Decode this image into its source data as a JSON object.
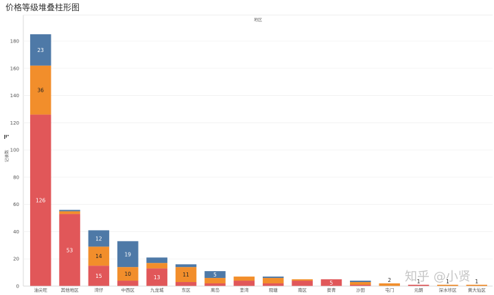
{
  "chart_data": {
    "type": "bar",
    "stacked": true,
    "title": "价格等级堆叠柱形图",
    "top_axis_label": "地区",
    "ylabel": "记录数",
    "ylim": [
      0,
      190
    ],
    "yticks": [
      0,
      20,
      40,
      60,
      80,
      100,
      120,
      140,
      160,
      180
    ],
    "grid": true,
    "categories": [
      "油尖旺",
      "其他地区",
      "湾仔",
      "中西区",
      "九龙城",
      "东区",
      "离岛",
      "荃湾",
      "观塘",
      "南区",
      "葵青",
      "沙田",
      "屯门",
      "元朗",
      "深水埗区",
      "黄大仙区"
    ],
    "series": [
      {
        "color": "#e15759",
        "values": [
          126,
          53,
          15,
          4,
          13,
          3,
          2,
          4,
          2,
          4,
          5,
          1,
          0,
          1,
          0,
          0
        ]
      },
      {
        "color": "#f28e2b",
        "values": [
          36,
          2,
          14,
          10,
          4,
          11,
          4,
          3,
          4,
          1,
          0,
          2,
          2,
          0,
          1,
          1
        ]
      },
      {
        "color": "#4e79a7",
        "values": [
          23,
          1,
          12,
          19,
          4,
          2,
          5,
          0,
          1,
          0,
          0,
          1,
          0,
          0,
          0,
          0
        ]
      }
    ],
    "value_labels": [
      [
        126,
        36,
        23
      ],
      [
        53,
        null,
        null
      ],
      [
        15,
        14,
        12
      ],
      [
        null,
        10,
        19
      ],
      [
        13,
        null,
        null
      ],
      [
        null,
        11,
        null
      ],
      [
        null,
        null,
        5
      ],
      [
        null,
        null,
        null
      ],
      [
        null,
        null,
        null
      ],
      [
        null,
        null,
        null
      ],
      [
        5,
        null,
        null
      ],
      [
        null,
        null,
        null
      ],
      [
        null,
        2,
        null
      ],
      [
        1,
        null,
        null
      ],
      [
        null,
        1,
        null
      ],
      [
        null,
        1,
        null
      ]
    ]
  },
  "watermark": "知乎 @小贤",
  "icons": {
    "sort": "sort-icon"
  }
}
